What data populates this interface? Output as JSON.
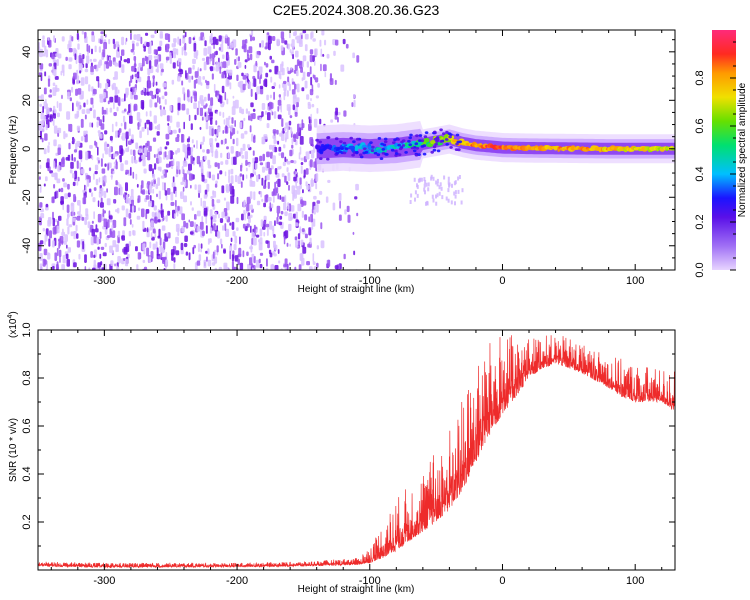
{
  "title": "C2E5.2024.308.20.36.G23",
  "colors": {
    "spectrogram_scatter": "#7a1ee8",
    "snr_line": "#ee2b2b"
  },
  "chart_data": [
    {
      "type": "heatmap",
      "name": "spectrogram",
      "xlabel": "Height of straight line (km)",
      "ylabel": "Frequency (Hz)",
      "xlim": [
        -350,
        130
      ],
      "ylim": [
        -50,
        49
      ],
      "xticks": [
        -300,
        -200,
        -100,
        0,
        100
      ],
      "yticks": [
        -40,
        -20,
        0,
        20,
        40
      ],
      "colorbar": {
        "label": "Normalized spectral amplitude",
        "range": [
          0,
          1
        ],
        "ticks": [
          "0.0",
          "0.2",
          "0.4",
          "0.6",
          "0.8"
        ],
        "tick_values": [
          0,
          0.2,
          0.4,
          0.6,
          0.8
        ],
        "palette": [
          "#e8d4ff",
          "#7b00e8",
          "#1b14ff",
          "#00bfff",
          "#00e070",
          "#66e000",
          "#f0e000",
          "#ff9a00",
          "#ff2a20",
          "#ff2a7a"
        ]
      },
      "noise_region_x": [
        -350,
        -115
      ],
      "dense_noise_edge_x": -140,
      "ridge": {
        "x": [
          -140,
          -120,
          -100,
          -80,
          -60,
          -50,
          -40,
          -30,
          -20,
          -10,
          0,
          20,
          40,
          60,
          80,
          100,
          130
        ],
        "freq": [
          0,
          0.5,
          0,
          0.5,
          2,
          3,
          4,
          2.5,
          1.5,
          1,
          0.5,
          0.3,
          0.2,
          0.1,
          0,
          0,
          0
        ],
        "peak_amplitude": [
          0.25,
          0.35,
          0.4,
          0.45,
          0.55,
          0.65,
          0.75,
          0.8,
          0.9,
          0.95,
          0.95,
          0.85,
          0.85,
          0.85,
          0.8,
          0.75,
          0.7
        ]
      }
    },
    {
      "type": "line",
      "name": "snr",
      "xlabel": "Height of straight line (km)",
      "ylabel": "SNR (10 * v/v)",
      "multiplier_base": "x10",
      "multiplier_exp": "4",
      "xlim": [
        -350,
        130
      ],
      "ylim": [
        0,
        1
      ],
      "xticks": [
        -300,
        -200,
        -100,
        0,
        100
      ],
      "yticks": [
        0.2,
        0.4,
        0.6,
        0.8,
        1.0
      ],
      "envelope": {
        "x": [
          -350,
          -300,
          -200,
          -150,
          -110,
          -100,
          -90,
          -80,
          -70,
          -60,
          -50,
          -40,
          -30,
          -20,
          -10,
          0,
          10,
          20,
          30,
          40,
          50,
          60,
          70,
          80,
          90,
          100,
          110,
          120,
          130
        ],
        "baseline": [
          0.015,
          0.01,
          0.012,
          0.015,
          0.02,
          0.03,
          0.05,
          0.08,
          0.12,
          0.16,
          0.2,
          0.25,
          0.33,
          0.45,
          0.56,
          0.65,
          0.72,
          0.8,
          0.84,
          0.86,
          0.84,
          0.82,
          0.79,
          0.76,
          0.72,
          0.7,
          0.7,
          0.7,
          0.66
        ],
        "peak": [
          0.035,
          0.03,
          0.03,
          0.035,
          0.05,
          0.1,
          0.2,
          0.3,
          0.36,
          0.42,
          0.5,
          0.6,
          0.72,
          0.85,
          0.95,
          1.0,
          0.97,
          0.97,
          0.98,
          0.98,
          0.97,
          0.95,
          0.92,
          0.9,
          0.88,
          0.86,
          0.85,
          0.84,
          0.84
        ]
      }
    }
  ]
}
